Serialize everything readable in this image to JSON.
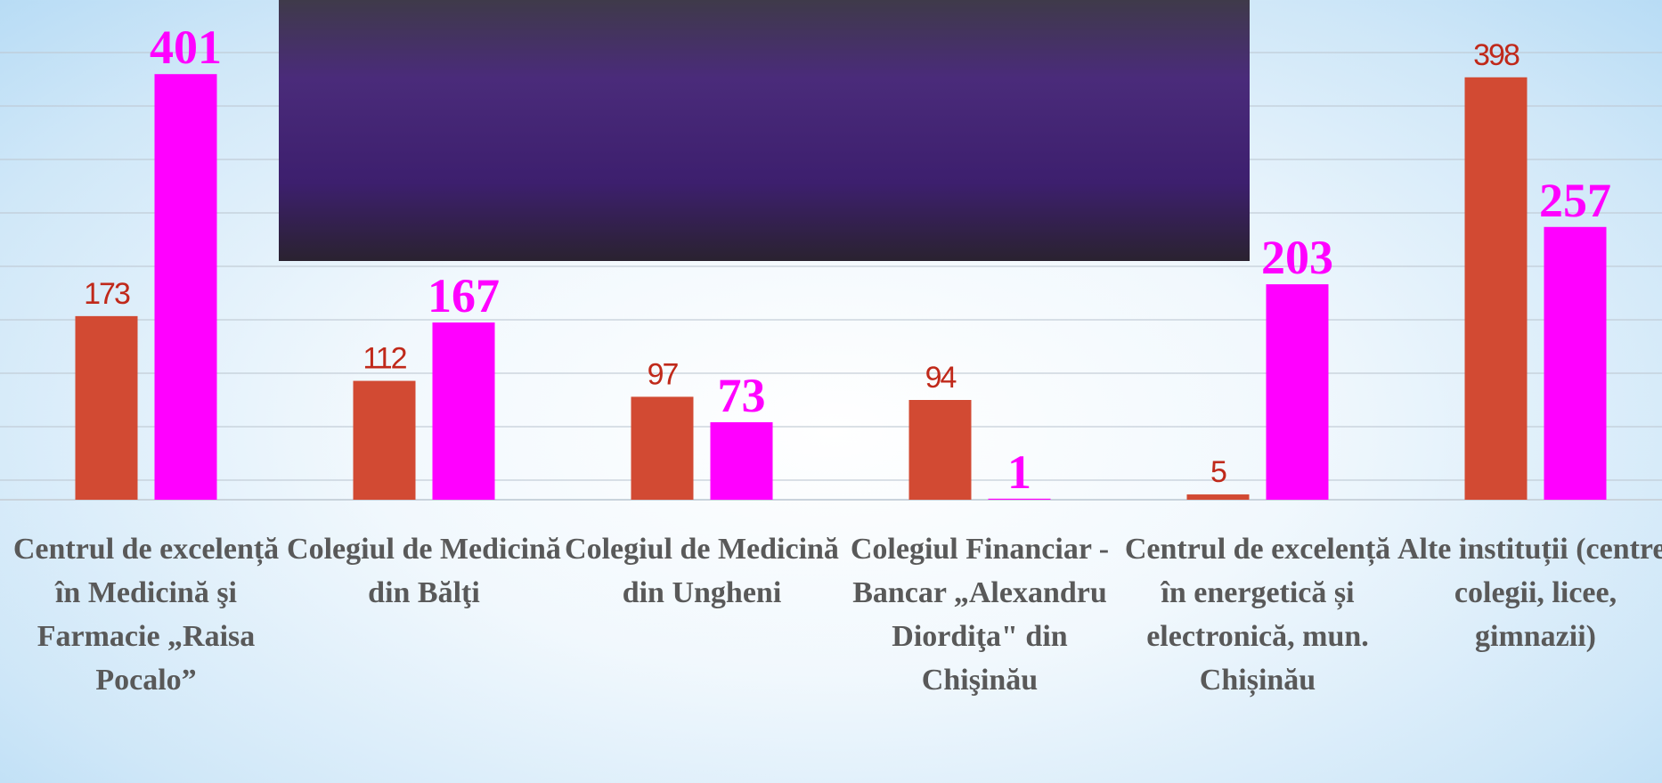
{
  "chart_data": {
    "type": "bar",
    "categories": [
      "Centrul de excelență în Medicină şi Farmacie „Raisa Pocalo”",
      "Colegiul de Medicină din Bălţi",
      "Colegiul de Medicină din Ungheni",
      "Colegiul Financiar - Bancar „Alexandru Diordiţa\" din Chişinău",
      "Centrul de excelență în energetică și electronică, mun. Chișinău",
      "Alte instituții (centre, colegii, licee, gimnazii)"
    ],
    "series": [
      {
        "color": "#d24a33",
        "values": [
          173,
          112,
          97,
          94,
          5,
          398
        ]
      },
      {
        "color": "#ff00ff",
        "values": [
          401,
          167,
          73,
          1,
          203,
          257
        ]
      }
    ],
    "ylim": [
      0,
      470
    ]
  }
}
